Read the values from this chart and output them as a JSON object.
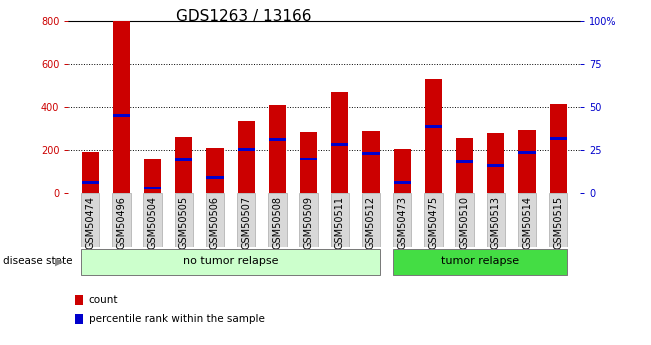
{
  "title": "GDS1263 / 13166",
  "samples": [
    "GSM50474",
    "GSM50496",
    "GSM50504",
    "GSM50505",
    "GSM50506",
    "GSM50507",
    "GSM50508",
    "GSM50509",
    "GSM50511",
    "GSM50512",
    "GSM50473",
    "GSM50475",
    "GSM50510",
    "GSM50513",
    "GSM50514",
    "GSM50515"
  ],
  "counts": [
    190,
    800,
    160,
    260,
    210,
    335,
    410,
    285,
    470,
    290,
    205,
    530,
    255,
    280,
    295,
    415
  ],
  "percentile_positions": [
    42,
    352,
    18,
    148,
    65,
    198,
    242,
    152,
    218,
    178,
    43,
    302,
    142,
    122,
    182,
    248
  ],
  "percentile_heights": [
    13,
    13,
    13,
    13,
    13,
    13,
    13,
    13,
    13,
    13,
    13,
    13,
    13,
    13,
    13,
    13
  ],
  "groups": [
    {
      "label": "no tumor relapse",
      "start": 0,
      "end": 9,
      "color": "#ccffcc"
    },
    {
      "label": "tumor relapse",
      "start": 10,
      "end": 15,
      "color": "#44dd44"
    }
  ],
  "bar_color": "#cc0000",
  "percentile_color": "#0000cc",
  "ylim_left": [
    0,
    800
  ],
  "ylim_right": [
    0,
    100
  ],
  "yticks_left": [
    0,
    200,
    400,
    600,
    800
  ],
  "yticks_right": [
    0,
    25,
    50,
    75,
    100
  ],
  "ytick_labels_right": [
    "0",
    "25",
    "50",
    "75",
    "100%"
  ],
  "left_tick_color": "#cc0000",
  "right_tick_color": "#0000cc",
  "bg_color": "#ffffff",
  "tick_label_bg": "#d8d8d8",
  "legend_count_label": "count",
  "legend_percentile_label": "percentile rank within the sample",
  "disease_state_label": "disease state",
  "bar_width": 0.55,
  "title_fontsize": 11,
  "tick_fontsize": 7,
  "strip_fontsize": 8
}
